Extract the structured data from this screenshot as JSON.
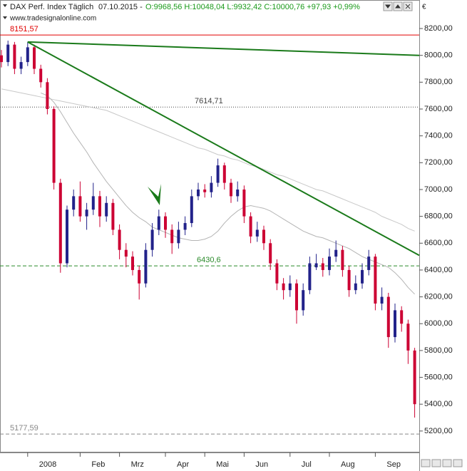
{
  "header": {
    "instrument": "DAX Perf. Index Täglich",
    "date": "07.10.2015 -",
    "quote": "O:9968,56 H:10048,04 L:9932,42 C:10000,76 +97,93 +0,99%",
    "source": "www.tradesignalonline.com",
    "currency": "€"
  },
  "chart_data": {
    "type": "candlestick",
    "categories": [
      null,
      null,
      null,
      null,
      "2008",
      null,
      null,
      null,
      null,
      null,
      null,
      null,
      "Feb",
      null,
      null,
      null,
      null,
      null,
      "Mrz",
      null,
      null,
      null,
      null,
      null,
      null,
      "Apr",
      null,
      null,
      null,
      null,
      null,
      "Mai",
      null,
      null,
      null,
      null,
      null,
      "Jun",
      null,
      null,
      null,
      null,
      null,
      null,
      "Jul",
      null,
      null,
      null,
      null,
      null,
      "Aug",
      null,
      null,
      null,
      null,
      null,
      null,
      "Sep",
      null,
      null,
      null,
      null,
      null,
      null
    ],
    "open": [
      8000,
      7950,
      8080,
      7900,
      7950,
      8060,
      7900,
      7800,
      7600,
      7050,
      6450,
      6850,
      6950,
      6800,
      6850,
      6950,
      6800,
      6900,
      6700,
      6550,
      6500,
      6400,
      6300,
      6550,
      6700,
      6800,
      6700,
      6600,
      6700,
      6750,
      6950,
      7000,
      6980,
      7050,
      7180,
      7050,
      6950,
      7000,
      6800,
      6650,
      6700,
      6600,
      6450,
      6300,
      6250,
      6300,
      6100,
      6250,
      6420,
      6450,
      6400,
      6500,
      6550,
      6400,
      6250,
      6300,
      6400,
      6500,
      6150,
      6200,
      5900,
      6100,
      6000,
      5800
    ],
    "high": [
      8040,
      8110,
      8100,
      7990,
      8100,
      8080,
      7930,
      7830,
      7620,
      7080,
      6880,
      7000,
      7060,
      6900,
      7050,
      6990,
      6950,
      6930,
      6740,
      6600,
      6540,
      6430,
      6600,
      6750,
      6850,
      6830,
      6740,
      6760,
      6800,
      7000,
      7050,
      7040,
      7100,
      7230,
      7200,
      7080,
      7060,
      7030,
      6830,
      6760,
      6730,
      6630,
      6480,
      6340,
      6360,
      6330,
      6300,
      6500,
      6520,
      6490,
      6560,
      6620,
      6580,
      6430,
      6360,
      6450,
      6550,
      6520,
      6270,
      6230,
      6150,
      6130,
      6030,
      5820
    ],
    "low": [
      7910,
      7920,
      7860,
      7860,
      7920,
      7860,
      7760,
      7560,
      7000,
      6380,
      6420,
      6800,
      6760,
      6700,
      6810,
      6720,
      6760,
      6660,
      6480,
      6420,
      6360,
      6180,
      6270,
      6500,
      6660,
      6640,
      6520,
      6560,
      6660,
      6720,
      6920,
      6940,
      6940,
      7020,
      7000,
      6900,
      6910,
      6750,
      6600,
      6610,
      6550,
      6400,
      6250,
      6180,
      6200,
      6000,
      6060,
      6220,
      6400,
      6350,
      6360,
      6460,
      6350,
      6200,
      6220,
      6260,
      6360,
      6100,
      6100,
      5820,
      5860,
      5940,
      5700,
      5300
    ],
    "close": [
      7950,
      8080,
      7900,
      7950,
      8060,
      7900,
      7800,
      7600,
      7050,
      6450,
      6850,
      6950,
      6800,
      6850,
      6950,
      6800,
      6900,
      6700,
      6550,
      6500,
      6400,
      6300,
      6550,
      6700,
      6800,
      6700,
      6600,
      6700,
      6750,
      6950,
      7000,
      6980,
      7050,
      7180,
      7050,
      6950,
      7000,
      6800,
      6650,
      6700,
      6600,
      6450,
      6300,
      6250,
      6300,
      6100,
      6250,
      6450,
      6450,
      6400,
      6500,
      6550,
      6400,
      6250,
      6300,
      6400,
      6500,
      6150,
      6200,
      5900,
      6100,
      6000,
      5800,
      5400
    ],
    "up_color": "#22228a",
    "down_color": "#cc0033",
    "moving_averages": [
      {
        "color": "#c8c8c8",
        "values": [
          7750,
          7740,
          7730,
          7720,
          7710,
          7700,
          7690,
          7680,
          7670,
          7660,
          7650,
          7640,
          7630,
          7620,
          7610,
          7600,
          7590,
          7570,
          7550,
          7530,
          7510,
          7490,
          7470,
          7450,
          7430,
          7410,
          7390,
          7370,
          7350,
          7330,
          7310,
          7300,
          7280,
          7260,
          7250,
          7230,
          7220,
          7200,
          7180,
          7170,
          7150,
          7130,
          7110,
          7100,
          7080,
          7060,
          7040,
          7020,
          7000,
          6990,
          6970,
          6950,
          6930,
          6910,
          6890,
          6870,
          6850,
          6830,
          6800,
          6780,
          6760,
          6740,
          6710,
          6690
        ]
      },
      {
        "color": "#b4b4b4",
        "values": [
          null,
          null,
          null,
          null,
          null,
          null,
          7720,
          7700,
          7650,
          7580,
          7500,
          7420,
          7350,
          7280,
          7200,
          7130,
          7060,
          7000,
          6940,
          6880,
          6830,
          6790,
          6760,
          6720,
          6700,
          6680,
          6660,
          6640,
          6630,
          6620,
          6620,
          6630,
          6650,
          6690,
          6750,
          6800,
          6840,
          6870,
          6880,
          6870,
          6860,
          6840,
          6810,
          6780,
          6750,
          6720,
          6690,
          6670,
          6650,
          6640,
          6620,
          6600,
          6580,
          6560,
          6530,
          6500,
          6480,
          6460,
          6440,
          6420,
          6380,
          6330,
          6270,
          6220
        ]
      }
    ],
    "trendlines": [
      {
        "color": "#1a7a1a",
        "from": {
          "index": 4,
          "value": 8100
        },
        "to": {
          "index": 63,
          "value": 6528
        }
      },
      {
        "color": "#1a7a1a",
        "from": {
          "index": 4,
          "value": 8100
        },
        "to": {
          "index": 63,
          "value": 8001
        }
      }
    ],
    "levels": [
      {
        "value": 8151.57,
        "label": "8151,57",
        "color": "#e00000",
        "style": "solid"
      },
      {
        "value": 7614.71,
        "label": "7614,71",
        "color": "#444444",
        "style": "dotted"
      },
      {
        "value": 6430.6,
        "label": "6430,6",
        "color": "#2a8a2a",
        "style": "dashed"
      },
      {
        "value": 5177.59,
        "label": "5177,59",
        "color": "#888888",
        "style": "dashed"
      }
    ],
    "ylim": [
      5040,
      8317
    ],
    "yticks": [
      {
        "value": 5200,
        "label": "5200,00"
      },
      {
        "value": 5400,
        "label": "5400,00"
      },
      {
        "value": 5600,
        "label": "5600,00"
      },
      {
        "value": 5800,
        "label": "5800,00"
      },
      {
        "value": 6000,
        "label": "6000,00"
      },
      {
        "value": 6200,
        "label": "6200,00"
      },
      {
        "value": 6400,
        "label": "6400,00"
      },
      {
        "value": 6600,
        "label": "6600,00"
      },
      {
        "value": 6800,
        "label": "6800,00"
      },
      {
        "value": 7000,
        "label": "7000,00"
      },
      {
        "value": 7200,
        "label": "7200,00"
      },
      {
        "value": 7400,
        "label": "7400,00"
      },
      {
        "value": 7600,
        "label": "7600,00"
      },
      {
        "value": 7800,
        "label": "7800,00"
      },
      {
        "value": 8000,
        "label": "8000,00"
      },
      {
        "value": 8200,
        "label": "8200,00"
      }
    ]
  }
}
